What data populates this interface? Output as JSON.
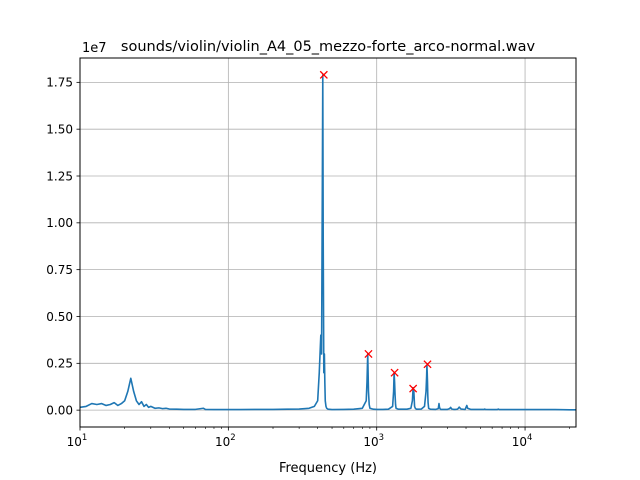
{
  "chart_data": {
    "type": "line",
    "title": "sounds/violin/violin_A4_05_mezzo-forte_arco-normal.wav",
    "xlabel": "Frequency (Hz)",
    "ylabel": "",
    "y_multiplier_label": "1e7",
    "x_scale": "log",
    "xlim": [
      10,
      22050
    ],
    "ylim": [
      -0.09,
      1.88
    ],
    "grid": true,
    "colors": {
      "line": "#1f77b4",
      "peak_marker": "#ff0000"
    },
    "x_ticks": [
      {
        "value": 10,
        "label": "10",
        "exp": "1"
      },
      {
        "value": 100,
        "label": "10",
        "exp": "2"
      },
      {
        "value": 1000,
        "label": "10",
        "exp": "3"
      },
      {
        "value": 10000,
        "label": "10",
        "exp": "4"
      }
    ],
    "y_ticks": [
      {
        "value": 0.0,
        "label": "0.00"
      },
      {
        "value": 0.25,
        "label": "0.25"
      },
      {
        "value": 0.5,
        "label": "0.50"
      },
      {
        "value": 0.75,
        "label": "0.75"
      },
      {
        "value": 1.0,
        "label": "1.00"
      },
      {
        "value": 1.25,
        "label": "1.25"
      },
      {
        "value": 1.5,
        "label": "1.50"
      },
      {
        "value": 1.75,
        "label": "1.75"
      }
    ],
    "series": [
      {
        "x": [
          10,
          11,
          12,
          13,
          14,
          15,
          16,
          17,
          18,
          19,
          20,
          21,
          22,
          23,
          24,
          25,
          26,
          27,
          28,
          29,
          30,
          32,
          34,
          36,
          38,
          40,
          45,
          50,
          60,
          68,
          70,
          80,
          100,
          120,
          150,
          200,
          250,
          300,
          350,
          380,
          400,
          410,
          420,
          425,
          430,
          433,
          436,
          440,
          444,
          447,
          450,
          455,
          460,
          470,
          500,
          600,
          700,
          800,
          850,
          860,
          870,
          875,
          880,
          890,
          900,
          950,
          1000,
          1100,
          1200,
          1280,
          1300,
          1310,
          1320,
          1330,
          1340,
          1350,
          1400,
          1500,
          1600,
          1700,
          1740,
          1760,
          1770,
          1780,
          1790,
          1800,
          1820,
          1850,
          1900,
          2000,
          2100,
          2150,
          2170,
          2180,
          2190,
          2200,
          2210,
          2220,
          2240,
          2300,
          2500,
          2600,
          2630,
          2650,
          2680,
          2700,
          2800,
          3000,
          3100,
          3150,
          3200,
          3300,
          3400,
          3500,
          3550,
          3600,
          3700,
          3900,
          3950,
          4000,
          4050,
          4100,
          4300,
          4600,
          5000,
          5300,
          5350,
          5400,
          6000,
          6500,
          6600,
          6700,
          7000,
          8000,
          10000,
          13000,
          16000,
          20000,
          22050
        ],
        "y": [
          0.015,
          0.02,
          0.035,
          0.03,
          0.035,
          0.025,
          0.03,
          0.04,
          0.025,
          0.035,
          0.05,
          0.1,
          0.17,
          0.1,
          0.05,
          0.03,
          0.045,
          0.02,
          0.03,
          0.015,
          0.02,
          0.01,
          0.012,
          0.008,
          0.01,
          0.006,
          0.005,
          0.004,
          0.004,
          0.01,
          0.004,
          0.003,
          0.003,
          0.003,
          0.004,
          0.004,
          0.005,
          0.006,
          0.01,
          0.02,
          0.05,
          0.2,
          0.4,
          0.3,
          1.2,
          1.79,
          0.9,
          0.2,
          0.3,
          0.15,
          0.05,
          0.02,
          0.01,
          0.005,
          0.003,
          0.004,
          0.005,
          0.01,
          0.05,
          0.15,
          0.3,
          0.2,
          0.1,
          0.03,
          0.01,
          0.005,
          0.004,
          0.004,
          0.005,
          0.02,
          0.1,
          0.2,
          0.15,
          0.08,
          0.03,
          0.01,
          0.005,
          0.005,
          0.005,
          0.01,
          0.05,
          0.12,
          0.09,
          0.1,
          0.06,
          0.02,
          0.01,
          0.005,
          0.005,
          0.006,
          0.02,
          0.1,
          0.18,
          0.24,
          0.2,
          0.15,
          0.08,
          0.04,
          0.01,
          0.005,
          0.004,
          0.008,
          0.035,
          0.015,
          0.006,
          0.004,
          0.004,
          0.004,
          0.008,
          0.015,
          0.006,
          0.004,
          0.004,
          0.005,
          0.01,
          0.016,
          0.006,
          0.004,
          0.004,
          0.015,
          0.025,
          0.01,
          0.004,
          0.004,
          0.004,
          0.004,
          0.006,
          0.004,
          0.003,
          0.003,
          0.006,
          0.003,
          0.003,
          0.003,
          0.003,
          0.003,
          0.003,
          0.002,
          0.002
        ]
      }
    ],
    "peaks": [
      {
        "x": 440,
        "y": 1.79
      },
      {
        "x": 880,
        "y": 0.3
      },
      {
        "x": 1320,
        "y": 0.2
      },
      {
        "x": 1760,
        "y": 0.115
      },
      {
        "x": 2200,
        "y": 0.245
      }
    ]
  }
}
